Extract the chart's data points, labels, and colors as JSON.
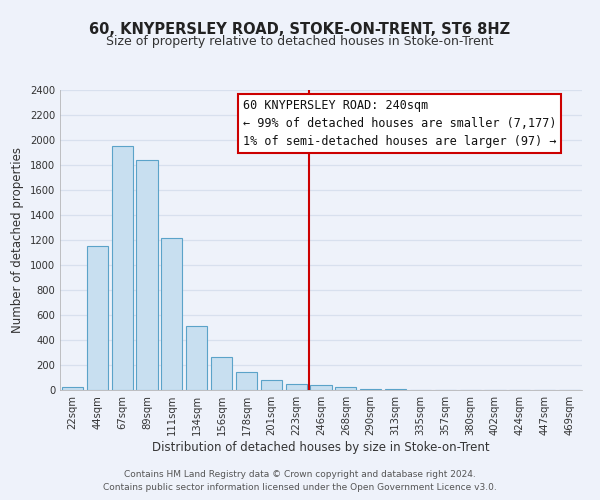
{
  "title": "60, KNYPERSLEY ROAD, STOKE-ON-TRENT, ST6 8HZ",
  "subtitle": "Size of property relative to detached houses in Stoke-on-Trent",
  "xlabel": "Distribution of detached houses by size in Stoke-on-Trent",
  "ylabel": "Number of detached properties",
  "bar_labels": [
    "22sqm",
    "44sqm",
    "67sqm",
    "89sqm",
    "111sqm",
    "134sqm",
    "156sqm",
    "178sqm",
    "201sqm",
    "223sqm",
    "246sqm",
    "268sqm",
    "290sqm",
    "313sqm",
    "335sqm",
    "357sqm",
    "380sqm",
    "402sqm",
    "424sqm",
    "447sqm",
    "469sqm"
  ],
  "bar_values": [
    25,
    1150,
    1950,
    1840,
    1215,
    515,
    265,
    148,
    78,
    48,
    40,
    22,
    10,
    5,
    3,
    2,
    1,
    1,
    1,
    1,
    0
  ],
  "bar_color": "#c8dff0",
  "bar_edge_color": "#5ba3c9",
  "vline_color": "#cc0000",
  "ylim": [
    0,
    2400
  ],
  "yticks": [
    0,
    200,
    400,
    600,
    800,
    1000,
    1200,
    1400,
    1600,
    1800,
    2000,
    2200,
    2400
  ],
  "annotation_title": "60 KNYPERSLEY ROAD: 240sqm",
  "annotation_line1": "← 99% of detached houses are smaller (7,177)",
  "annotation_line2": "1% of semi-detached houses are larger (97) →",
  "annotation_box_color": "#ffffff",
  "annotation_box_edge": "#cc0000",
  "footer1": "Contains HM Land Registry data © Crown copyright and database right 2024.",
  "footer2": "Contains public sector information licensed under the Open Government Licence v3.0.",
  "background_color": "#eef2fa",
  "grid_color": "#d8e0ee",
  "title_fontsize": 10.5,
  "subtitle_fontsize": 9,
  "axis_label_fontsize": 8.5,
  "tick_fontsize": 7.2,
  "annotation_fontsize": 8.5,
  "footer_fontsize": 6.5
}
